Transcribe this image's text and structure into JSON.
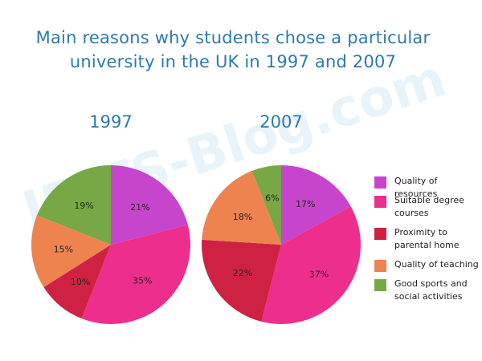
{
  "title_line1": "Main reasons why students chose a particular",
  "title_line2": "university in the UK in 1997 and 2007",
  "watermark": "IELTS-Blog.com",
  "chart_data": {
    "type": "pie",
    "categories": [
      "Quality of resources",
      "Suitable degree courses",
      "Proximity to parental home",
      "Quality of teaching",
      "Good sports and social activities"
    ],
    "colors": [
      "#c744cc",
      "#ee2e8c",
      "#cf2243",
      "#ee834f",
      "#77a845"
    ],
    "pies": [
      {
        "label": "1997",
        "values": [
          21,
          35,
          10,
          15,
          19
        ],
        "value_labels": [
          "21%",
          "35%",
          "10%",
          "15%",
          "19%"
        ]
      },
      {
        "label": "2007",
        "values": [
          17,
          37,
          22,
          18,
          6
        ],
        "value_labels": [
          "17%",
          "37%",
          "22%",
          "18%",
          "6%"
        ]
      }
    ],
    "legend_position": "right"
  }
}
